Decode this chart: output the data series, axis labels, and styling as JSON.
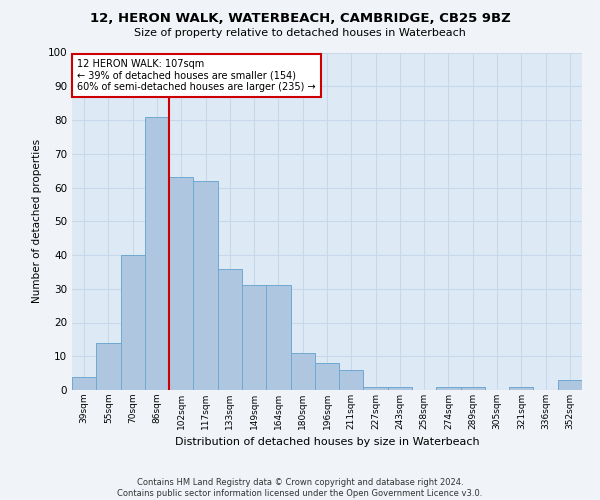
{
  "title": "12, HERON WALK, WATERBEACH, CAMBRIDGE, CB25 9BZ",
  "subtitle": "Size of property relative to detached houses in Waterbeach",
  "xlabel": "Distribution of detached houses by size in Waterbeach",
  "ylabel": "Number of detached properties",
  "categories": [
    "39sqm",
    "55sqm",
    "70sqm",
    "86sqm",
    "102sqm",
    "117sqm",
    "133sqm",
    "149sqm",
    "164sqm",
    "180sqm",
    "196sqm",
    "211sqm",
    "227sqm",
    "243sqm",
    "258sqm",
    "274sqm",
    "289sqm",
    "305sqm",
    "321sqm",
    "336sqm",
    "352sqm"
  ],
  "values": [
    4,
    14,
    40,
    81,
    63,
    62,
    36,
    31,
    31,
    11,
    8,
    6,
    1,
    1,
    0,
    1,
    1,
    0,
    1,
    0,
    3
  ],
  "bar_color": "#aec6e0",
  "bar_edge_color": "#6fa8d0",
  "marker_index": 4,
  "marker_color": "#cc0000",
  "annotation_line1": "12 HERON WALK: 107sqm",
  "annotation_line2": "← 39% of detached houses are smaller (154)",
  "annotation_line3": "60% of semi-detached houses are larger (235) →",
  "annotation_box_color": "#cc0000",
  "ylim": [
    0,
    100
  ],
  "yticks": [
    0,
    10,
    20,
    30,
    40,
    50,
    60,
    70,
    80,
    90,
    100
  ],
  "grid_color": "#c8d8ea",
  "background_color": "#ddeaf6",
  "fig_background": "#f0f4f8",
  "title_fontsize": 9.5,
  "subtitle_fontsize": 8,
  "footnote1": "Contains HM Land Registry data © Crown copyright and database right 2024.",
  "footnote2": "Contains public sector information licensed under the Open Government Licence v3.0."
}
